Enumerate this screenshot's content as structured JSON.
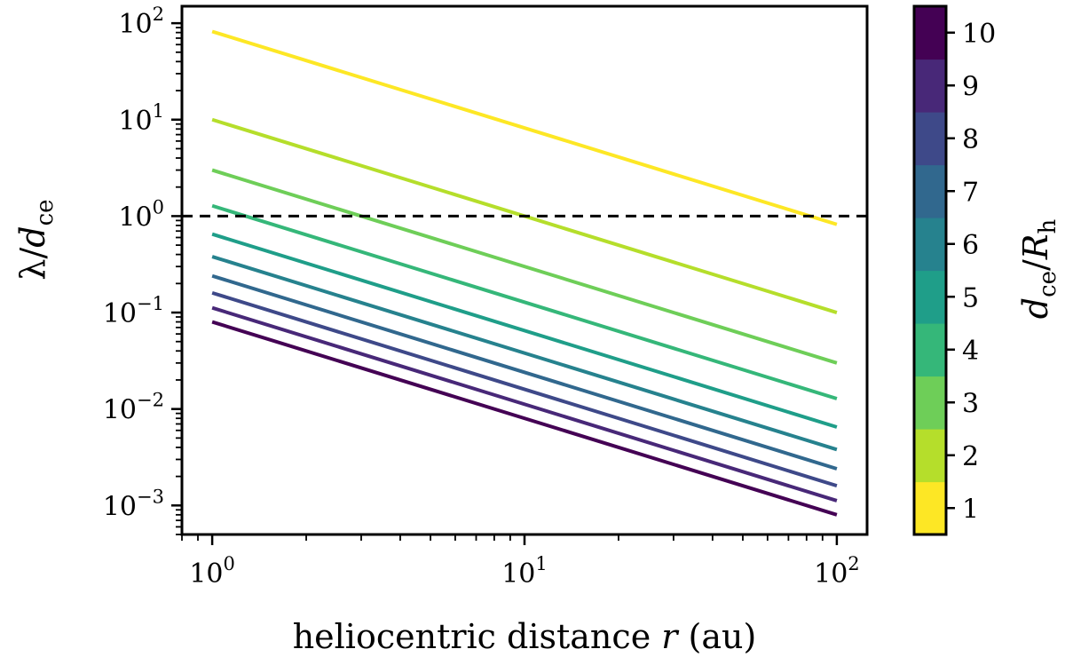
{
  "chart_data": {
    "type": "line",
    "xscale": "log",
    "yscale": "log",
    "xlabel": "heliocentric distance r (au)",
    "ylabel": "λ/d_ce",
    "xlim": [
      0.8,
      125
    ],
    "ylim": [
      0.0005,
      150
    ],
    "x": [
      1,
      100
    ],
    "x_ticks": [
      {
        "value": 1,
        "base": "10",
        "exp": "0"
      },
      {
        "value": 10,
        "base": "10",
        "exp": "1"
      },
      {
        "value": 100,
        "base": "10",
        "exp": "2"
      }
    ],
    "y_ticks": [
      {
        "value": 0.001,
        "base": "10",
        "exp": "−3"
      },
      {
        "value": 0.01,
        "base": "10",
        "exp": "−2"
      },
      {
        "value": 0.1,
        "base": "10",
        "exp": "−1"
      },
      {
        "value": 1,
        "base": "10",
        "exp": "0"
      },
      {
        "value": 10,
        "base": "10",
        "exp": "1"
      },
      {
        "value": 100,
        "base": "10",
        "exp": "2"
      }
    ],
    "reference_line": {
      "y": 1,
      "style": "dashed",
      "color": "#000000"
    },
    "series": [
      {
        "name": "1",
        "color": "#fde725",
        "values": [
          82,
          0.82
        ]
      },
      {
        "name": "2",
        "color": "#b5de2b",
        "values": [
          10,
          0.1
        ]
      },
      {
        "name": "3",
        "color": "#6ece58",
        "values": [
          3.0,
          0.03
        ]
      },
      {
        "name": "4",
        "color": "#35b779",
        "values": [
          1.28,
          0.0128
        ]
      },
      {
        "name": "5",
        "color": "#1f9e89",
        "values": [
          0.65,
          0.0065
        ]
      },
      {
        "name": "6",
        "color": "#26828e",
        "values": [
          0.38,
          0.0038
        ]
      },
      {
        "name": "7",
        "color": "#31688e",
        "values": [
          0.24,
          0.0024
        ]
      },
      {
        "name": "8",
        "color": "#3e4989",
        "values": [
          0.16,
          0.0016
        ]
      },
      {
        "name": "9",
        "color": "#482878",
        "values": [
          0.112,
          0.00112
        ]
      },
      {
        "name": "10",
        "color": "#440154",
        "values": [
          0.08,
          0.0008
        ]
      }
    ],
    "colorbar": {
      "label": "d_ce/R_h",
      "ticks": [
        "1",
        "2",
        "3",
        "4",
        "5",
        "6",
        "7",
        "8",
        "9",
        "10"
      ],
      "colors": [
        "#fde725",
        "#b5de2b",
        "#6ece58",
        "#35b779",
        "#1f9e89",
        "#26828e",
        "#31688e",
        "#3e4989",
        "#482878",
        "#440154"
      ]
    }
  }
}
